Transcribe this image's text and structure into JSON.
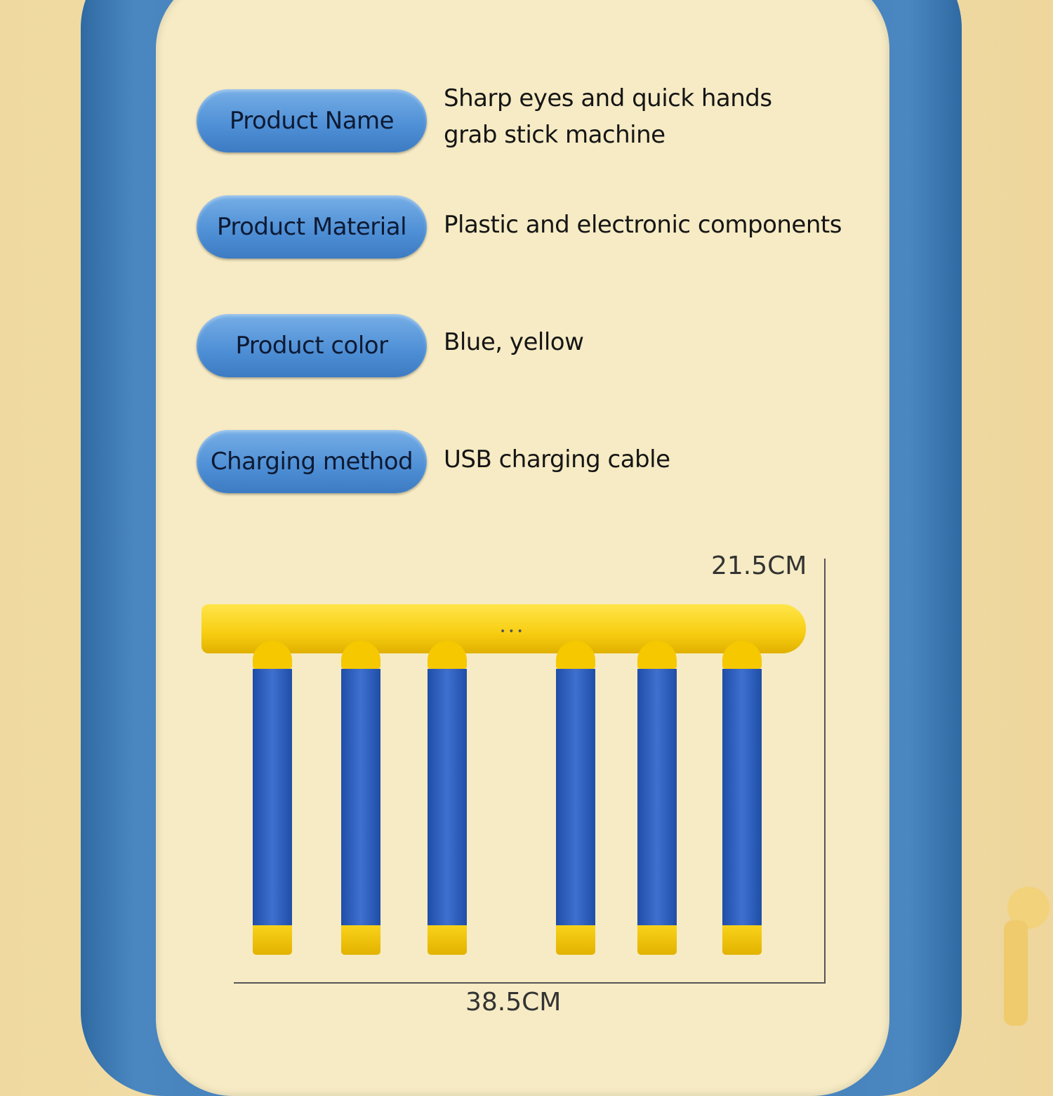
{
  "specs": [
    {
      "label": "Product Name",
      "value": "Sharp eyes and quick hands grab stick machine"
    },
    {
      "label": "Product Material",
      "value": "Plastic and electronic components"
    },
    {
      "label": "Product color",
      "value": "Blue, yellow"
    },
    {
      "label": "Charging method",
      "value": "USB charging cable"
    }
  ],
  "dimensions": {
    "height": "21.5CM",
    "width": "38.5CM"
  },
  "colors": {
    "frame": "#3f79b3",
    "panel": "#f6ebc4",
    "pill": "#5b98da",
    "stick_yellow": "#f7cd10",
    "stick_blue": "#2f5fc0"
  }
}
